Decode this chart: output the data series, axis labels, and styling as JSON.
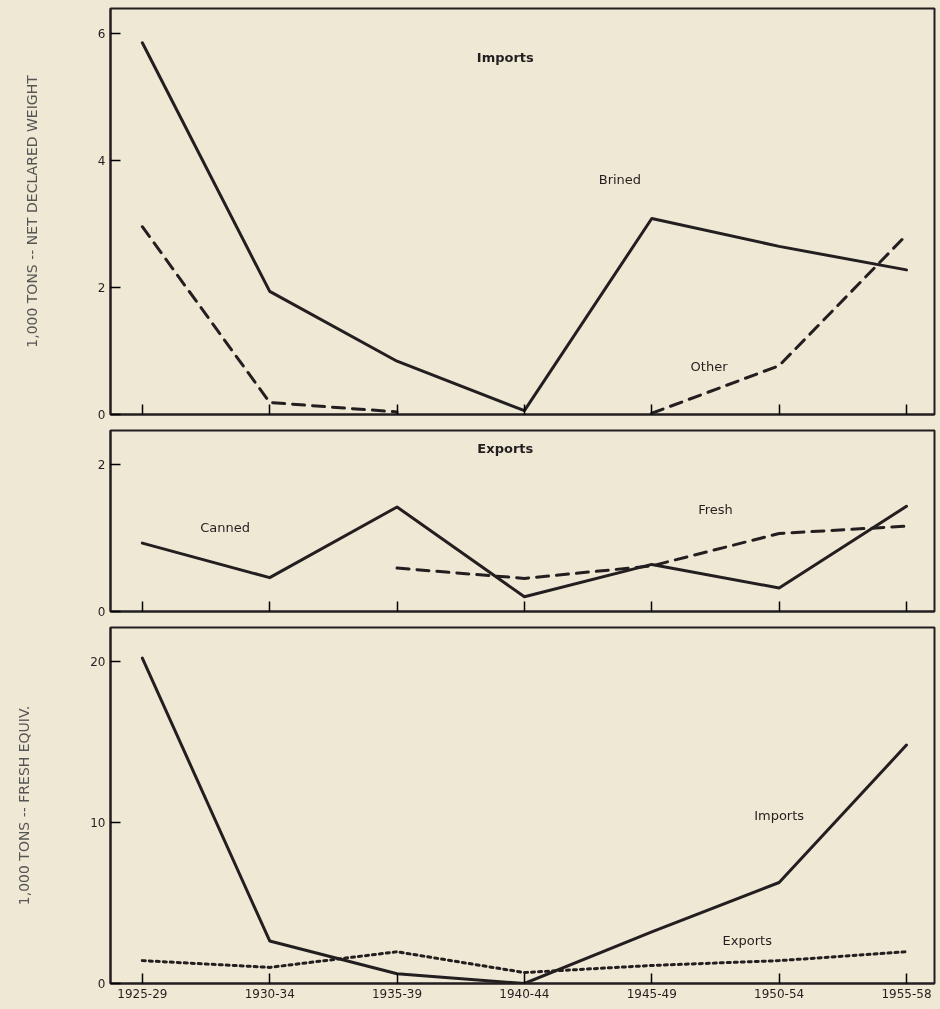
{
  "chart_data": [
    {
      "type": "line",
      "title": "Imports",
      "ylabel": "1,000 TONS -- NET DECLARED WEIGHT",
      "categories": [
        "1925-29",
        "1930-34",
        "1935-39",
        "1940-44",
        "1945-49",
        "1950-54",
        "1955-58"
      ],
      "ylim": [
        0,
        6.4
      ],
      "yticks": [
        0,
        2,
        4,
        6
      ],
      "tick_labels": "y",
      "grid": false,
      "series": [
        {
          "name": "Brined",
          "color": "#231f20",
          "line_style": "solid",
          "values": [
            5.86,
            1.94,
            0.84,
            0.06,
            3.09,
            2.65,
            2.28
          ]
        },
        {
          "name": "Other",
          "color": "#231f20",
          "line_style": "dashed",
          "values": [
            2.96,
            0.19,
            0.04,
            null,
            0.02,
            0.77,
            2.83
          ]
        }
      ]
    },
    {
      "type": "line",
      "title": "Exports",
      "categories": [
        "1925-29",
        "1930-34",
        "1935-39",
        "1940-44",
        "1945-49",
        "1950-54",
        "1955-58"
      ],
      "ylim": [
        0,
        2.46
      ],
      "yticks": [
        0,
        2
      ],
      "tick_labels": "y",
      "grid": false,
      "series": [
        {
          "name": "Canned",
          "color": "#231f20",
          "line_style": "solid",
          "values": [
            0.93,
            0.46,
            1.42,
            0.2,
            0.64,
            0.32,
            1.43
          ]
        },
        {
          "name": "Fresh",
          "color": "#231f20",
          "line_style": "dashed",
          "values": [
            null,
            null,
            0.59,
            0.45,
            0.62,
            1.06,
            1.16
          ]
        }
      ]
    },
    {
      "type": "line",
      "ylabel": "1,000 TONS -- FRESH EQUIV.",
      "categories": [
        "1925-29",
        "1930-34",
        "1935-39",
        "1940-44",
        "1945-49",
        "1950-54",
        "1955-58"
      ],
      "ylim": [
        0,
        22.1
      ],
      "yticks": [
        0,
        10,
        20
      ],
      "grid": false,
      "series": [
        {
          "name": "Imports",
          "color": "#231f20",
          "line_style": "solid",
          "values": [
            20.2,
            2.64,
            0.61,
            0,
            3.2,
            6.27,
            14.8
          ]
        },
        {
          "name": "Exports",
          "color": "#231f20",
          "line_style": "dotted",
          "values": [
            1.42,
            1.0,
            1.97,
            0.68,
            1.12,
            1.42,
            1.97
          ]
        }
      ]
    }
  ]
}
